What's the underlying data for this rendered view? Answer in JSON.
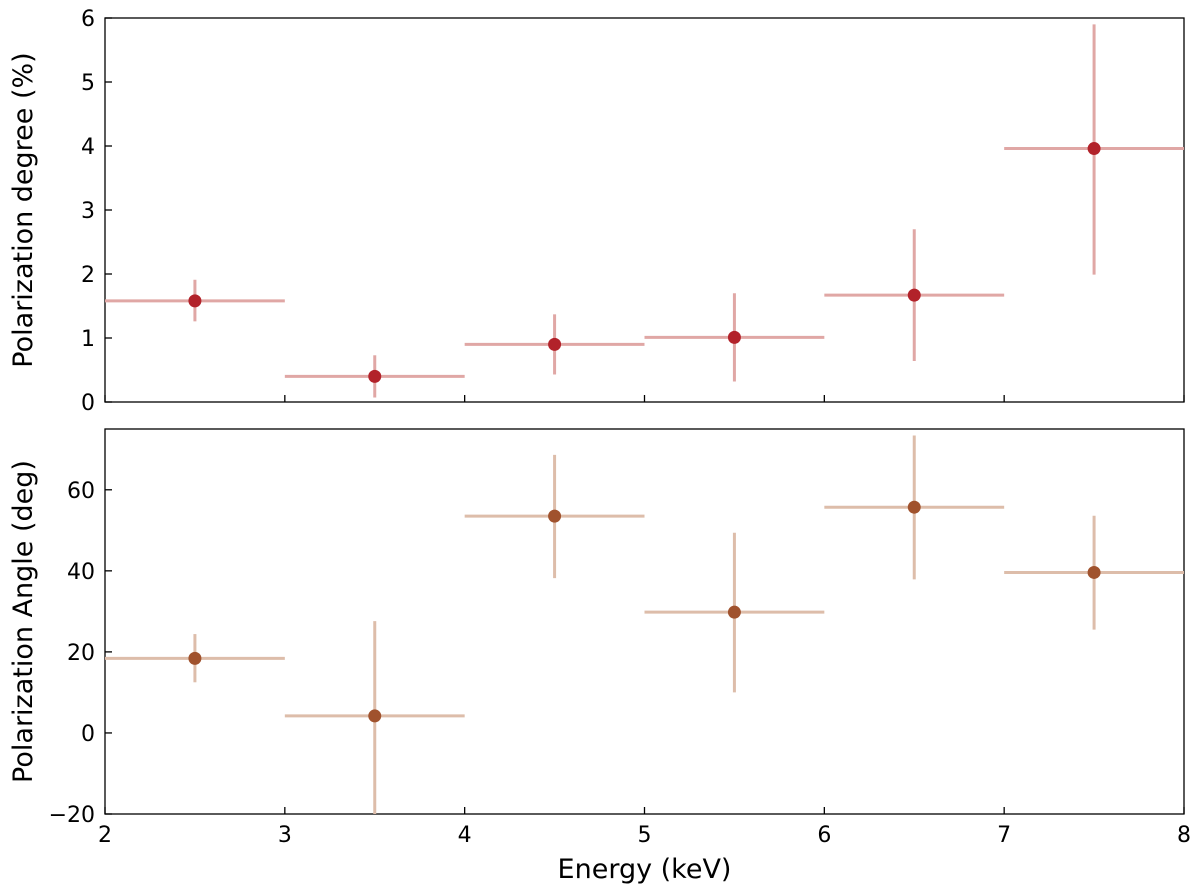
{
  "chart_data": [
    {
      "type": "scatter",
      "panel": "top",
      "ylabel": "Polarization degree (%)",
      "xlabel": "",
      "xlim": [
        2,
        8
      ],
      "ylim": [
        0,
        6
      ],
      "xticks": [
        2,
        3,
        4,
        5,
        6,
        7,
        8
      ],
      "yticks": [
        0,
        1,
        2,
        3,
        4,
        5,
        6
      ],
      "ytick_labels": [
        "0",
        "1",
        "2",
        "3",
        "4",
        "5",
        "6"
      ],
      "marker_color": "#B2222A",
      "errorbar_color": "#E0A7A5",
      "points": [
        {
          "x": 2.5,
          "xerr": 0.5,
          "y": 1.58,
          "y_low": 1.26,
          "y_high": 1.91
        },
        {
          "x": 3.5,
          "xerr": 0.5,
          "y": 0.4,
          "y_low": 0.07,
          "y_high": 0.73
        },
        {
          "x": 4.5,
          "xerr": 0.5,
          "y": 0.9,
          "y_low": 0.43,
          "y_high": 1.37
        },
        {
          "x": 5.5,
          "xerr": 0.5,
          "y": 1.01,
          "y_low": 0.32,
          "y_high": 1.7
        },
        {
          "x": 6.5,
          "xerr": 0.5,
          "y": 1.67,
          "y_low": 0.64,
          "y_high": 2.7
        },
        {
          "x": 7.5,
          "xerr": 0.5,
          "y": 3.96,
          "y_low": 1.99,
          "y_high": 5.9
        }
      ]
    },
    {
      "type": "scatter",
      "panel": "bottom",
      "ylabel": "Polarization Angle (deg)",
      "xlabel": "Energy (keV)",
      "xlim": [
        2,
        8
      ],
      "ylim": [
        -20,
        75
      ],
      "xticks": [
        2,
        3,
        4,
        5,
        6,
        7,
        8
      ],
      "xtick_labels": [
        "2",
        "3",
        "4",
        "5",
        "6",
        "7",
        "8"
      ],
      "yticks": [
        -20,
        0,
        20,
        40,
        60
      ],
      "ytick_labels": [
        "−20",
        "0",
        "20",
        "40",
        "60"
      ],
      "marker_color": "#A0522D",
      "errorbar_color": "#DDBDAA",
      "points": [
        {
          "x": 2.5,
          "xerr": 0.5,
          "y": 18.4,
          "y_low": 12.5,
          "y_high": 24.4
        },
        {
          "x": 3.5,
          "xerr": 0.5,
          "y": 4.2,
          "y_low": -20.0,
          "y_high": 27.6
        },
        {
          "x": 4.5,
          "xerr": 0.5,
          "y": 53.5,
          "y_low": 38.2,
          "y_high": 68.6
        },
        {
          "x": 5.5,
          "xerr": 0.5,
          "y": 29.8,
          "y_low": 10.0,
          "y_high": 49.4
        },
        {
          "x": 6.5,
          "xerr": 0.5,
          "y": 55.7,
          "y_low": 37.9,
          "y_high": 73.4
        },
        {
          "x": 7.5,
          "xerr": 0.5,
          "y": 39.6,
          "y_low": 25.5,
          "y_high": 53.6
        }
      ]
    }
  ]
}
